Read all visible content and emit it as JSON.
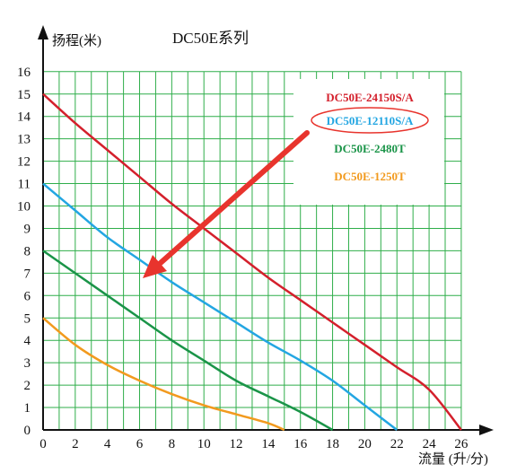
{
  "chart_data": {
    "type": "line",
    "title": "DC50E系列",
    "ylabel": "扬程(米)",
    "xlabel": "流量 (升/分)",
    "xlim": [
      0,
      26
    ],
    "ylim": [
      0,
      16
    ],
    "x_ticks": [
      "0",
      "2",
      "4",
      "6",
      "8",
      "10",
      "12",
      "14",
      "16",
      "18",
      "20",
      "22",
      "24",
      "26"
    ],
    "y_ticks": [
      "0",
      "1",
      "2",
      "3",
      "4",
      "5",
      "6",
      "7",
      "8",
      "9",
      "10",
      "11",
      "12",
      "13",
      "14",
      "15",
      "16"
    ],
    "grid": true,
    "legend_position": "top-right",
    "highlighted_series": "DC50E-12110S/A",
    "series": [
      {
        "name": "DC50E-24150S/A",
        "color": "#d4202c",
        "x": [
          0,
          2,
          4,
          6,
          8,
          10,
          12,
          14,
          16,
          18,
          20,
          22,
          24,
          26
        ],
        "y": [
          15.0,
          13.7,
          12.5,
          11.3,
          10.1,
          9.0,
          7.9,
          6.8,
          5.8,
          4.8,
          3.8,
          2.8,
          1.8,
          0
        ]
      },
      {
        "name": "DC50E-12110S/A",
        "color": "#23a6e2",
        "x": [
          0,
          2,
          4,
          6,
          8,
          10,
          12,
          14,
          16,
          18,
          20,
          22
        ],
        "y": [
          11.0,
          9.8,
          8.6,
          7.6,
          6.6,
          5.7,
          4.8,
          3.9,
          3.1,
          2.2,
          1.1,
          0
        ]
      },
      {
        "name": "DC50E-2480T",
        "color": "#1a9448",
        "x": [
          0,
          2,
          4,
          6,
          8,
          10,
          12,
          14,
          16,
          18
        ],
        "y": [
          8.0,
          7.0,
          6.0,
          5.0,
          4.0,
          3.1,
          2.2,
          1.5,
          0.8,
          0
        ]
      },
      {
        "name": "DC50E-1250T",
        "color": "#f29a1e",
        "x": [
          0,
          2,
          4,
          6,
          8,
          10,
          12,
          14,
          15
        ],
        "y": [
          5.0,
          3.8,
          2.9,
          2.2,
          1.6,
          1.1,
          0.7,
          0.3,
          0
        ]
      }
    ]
  },
  "colors": {
    "grid": "#2fae4a",
    "axis": "#111111",
    "arrow": "#e8342d",
    "highlight_ellipse": "#e8342d"
  }
}
